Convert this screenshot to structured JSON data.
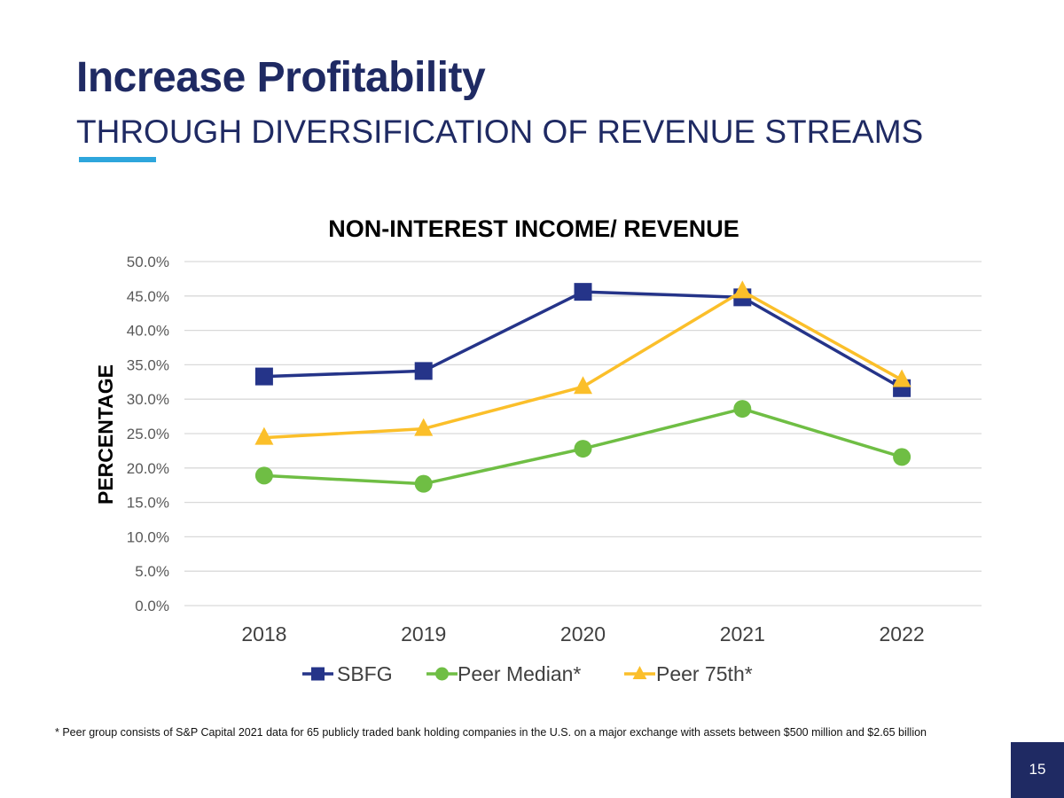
{
  "slide": {
    "title": "Increase Profitability",
    "subtitle": "THROUGH DIVERSIFICATION OF REVENUE STREAMS",
    "footnote": "* Peer group consists of S&P Capital 2021 data for 65 publicly traded bank holding companies in the U.S. on a major exchange with assets between $500 million and $2.65 billion",
    "page_number": "15",
    "colors": {
      "title": "#1f2a63",
      "accent": "#2ea6dc",
      "page_box": "#1f2a63"
    }
  },
  "chart_data": {
    "type": "line",
    "title": "NON-INTEREST INCOME/ REVENUE",
    "xlabel": "",
    "ylabel": "PERCENTAGE",
    "categories": [
      "2018",
      "2019",
      "2020",
      "2021",
      "2022"
    ],
    "ylim": [
      0,
      50
    ],
    "yticks": [
      0,
      5,
      10,
      15,
      20,
      25,
      30,
      35,
      40,
      45,
      50
    ],
    "ytick_labels": [
      "0.0%",
      "5.0%",
      "10.0%",
      "15.0%",
      "20.0%",
      "25.0%",
      "30.0%",
      "35.0%",
      "40.0%",
      "45.0%",
      "50.0%"
    ],
    "grid": true,
    "legend_position": "bottom",
    "series": [
      {
        "name": "SBFG",
        "marker": "square",
        "color": "#253489",
        "values": [
          33.3,
          34.1,
          45.6,
          44.8,
          31.6
        ]
      },
      {
        "name": "Peer Median*",
        "marker": "circle",
        "color": "#6fbe44",
        "values": [
          18.9,
          17.7,
          22.8,
          28.6,
          21.6
        ]
      },
      {
        "name": "Peer 75th*",
        "marker": "triangle",
        "color": "#fbbf2a",
        "values": [
          24.4,
          25.7,
          31.8,
          45.7,
          32.8
        ]
      }
    ]
  }
}
